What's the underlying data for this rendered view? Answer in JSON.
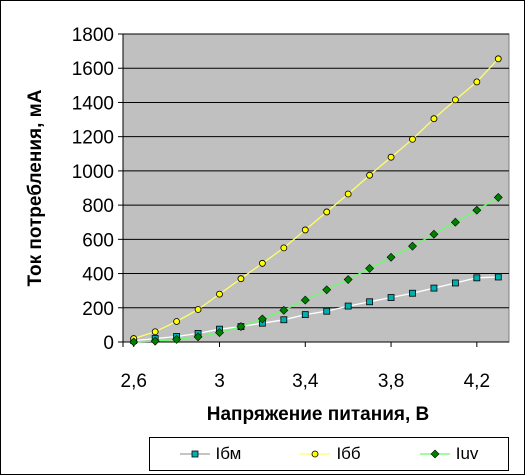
{
  "chart_data": {
    "type": "line",
    "title": "",
    "xlabel": "Напряжение питания, В",
    "ylabel": "Ток потребления, мА",
    "xlim": [
      2.55,
      4.35
    ],
    "ylim": [
      0,
      1800
    ],
    "x_ticks": [
      "2,6",
      "3",
      "3,4",
      "3,8",
      "4,2"
    ],
    "x_tick_values": [
      2.6,
      3.0,
      3.4,
      3.8,
      4.2
    ],
    "y_ticks": [
      "0",
      "200",
      "400",
      "600",
      "800",
      "1000",
      "1200",
      "1400",
      "1600",
      "1800"
    ],
    "y_tick_values": [
      0,
      200,
      400,
      600,
      800,
      1000,
      1200,
      1400,
      1600,
      1800
    ],
    "grid": "horizontal",
    "plot_background": "#c0c0c0",
    "legend_position": "bottom",
    "x": [
      2.6,
      2.7,
      2.8,
      2.9,
      3.0,
      3.1,
      3.2,
      3.3,
      3.4,
      3.5,
      3.6,
      3.7,
      3.8,
      3.9,
      4.0,
      4.1,
      4.2,
      4.3
    ],
    "series": [
      {
        "name": "Iбм",
        "marker": "square",
        "color": "#00b0b0",
        "line_color": "#ffffff",
        "values": [
          8,
          20,
          32,
          50,
          75,
          90,
          110,
          130,
          160,
          180,
          210,
          235,
          260,
          285,
          315,
          345,
          375,
          380
        ]
      },
      {
        "name": "Iбб",
        "marker": "circle",
        "color": "#ffff00",
        "line_color": "#ffff66",
        "values": [
          20,
          60,
          120,
          190,
          280,
          370,
          460,
          550,
          655,
          760,
          865,
          975,
          1080,
          1185,
          1305,
          1415,
          1520,
          1655
        ]
      },
      {
        "name": "Iuv",
        "marker": "diamond",
        "color": "#008000",
        "line_color": "#66ff66",
        "values": [
          0,
          5,
          15,
          30,
          55,
          90,
          135,
          185,
          245,
          305,
          365,
          430,
          495,
          560,
          630,
          700,
          770,
          845
        ]
      }
    ]
  }
}
